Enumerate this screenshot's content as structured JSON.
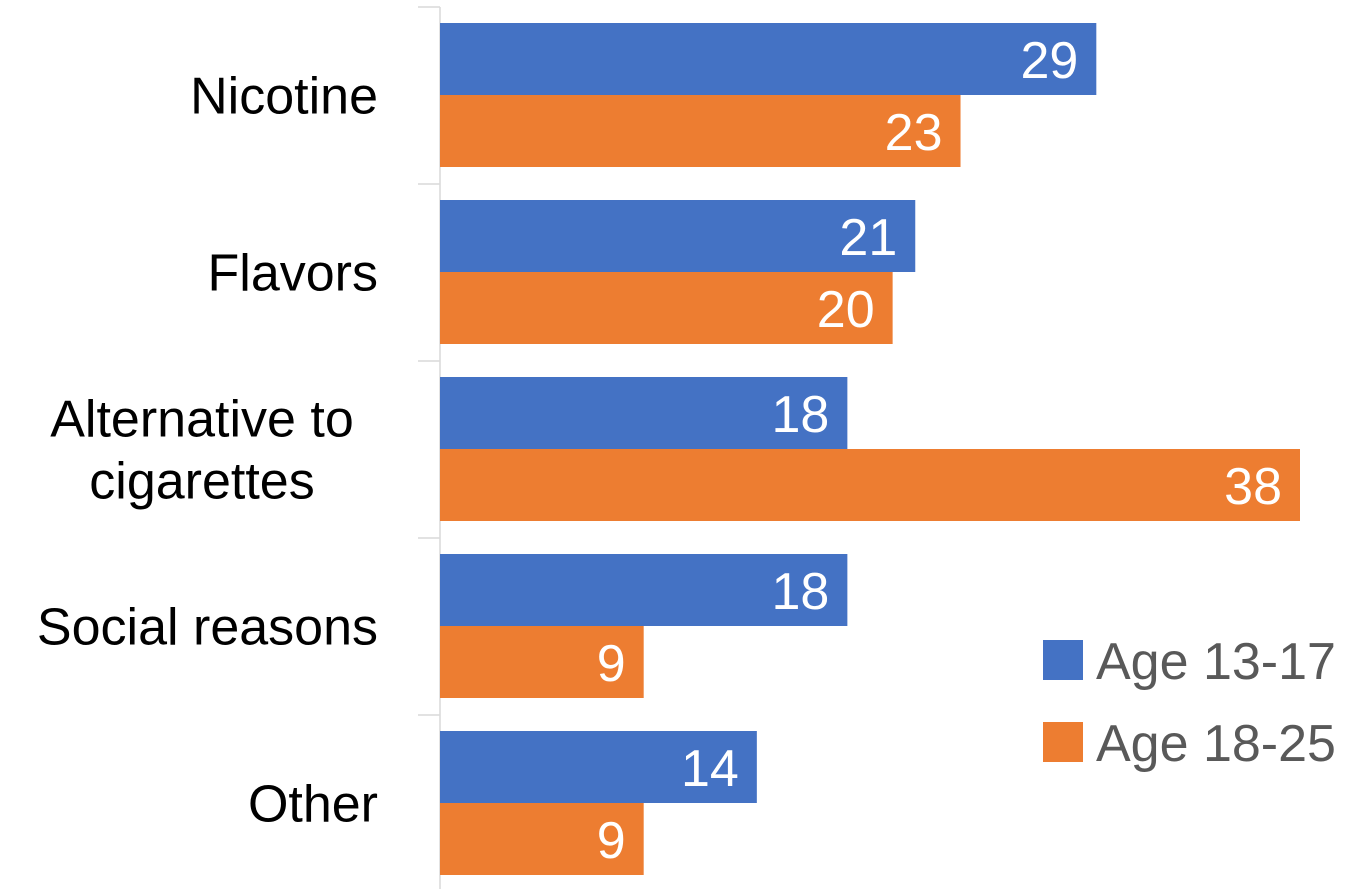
{
  "chart_data": {
    "type": "bar",
    "orientation": "horizontal",
    "categories": [
      [
        "Nicotine"
      ],
      [
        "Flavors"
      ],
      [
        "Alternative to",
        "cigarettes"
      ],
      [
        "Social reasons"
      ],
      [
        "Other"
      ]
    ],
    "series": [
      {
        "name": "Age 13-17",
        "color": "#4472C4",
        "values": [
          29,
          21,
          18,
          18,
          14
        ]
      },
      {
        "name": "Age 18-25",
        "color": "#ED7D31",
        "values": [
          23,
          20,
          38,
          9,
          9
        ]
      }
    ],
    "xlim": [
      0,
      38
    ],
    "data_labels": true,
    "gridlines": false,
    "legend_position": "right"
  }
}
